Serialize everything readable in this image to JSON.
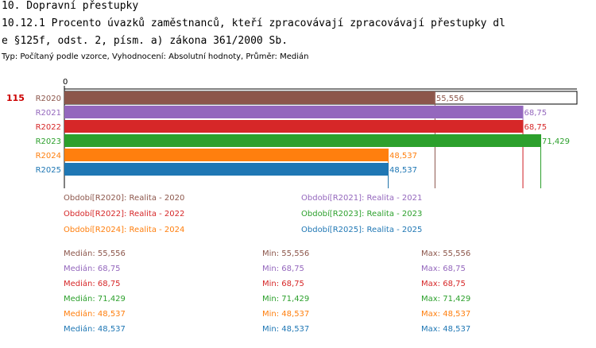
{
  "header": {
    "section": "10. Dopravní přestupky",
    "title_line1": "10.12.1 Procento úvazků zaměstnanců, kteří zpracovávají zpracovávají přestupky dl",
    "title_line2": "e §125f, odst. 2, písm. a) zákona 361/2000 Sb.",
    "subtitle": "Typ: Počítaný podle vzorce, Vyhodnocení: Absolutní hodnoty, Průměr: Medián"
  },
  "chart_data": {
    "type": "bar",
    "orientation": "horizontal",
    "row_label": "115",
    "axis_zero_label": "0",
    "categories": [
      "R2020",
      "R2021",
      "R2022",
      "R2023",
      "R2024",
      "R2025"
    ],
    "values": [
      55.556,
      68.75,
      68.75,
      71.429,
      48.537,
      48.537
    ],
    "value_labels": [
      "55,556",
      "68,75",
      "68,75",
      "71,429",
      "48,537",
      "48,537"
    ],
    "colors": [
      "#8c564b",
      "#9467bd",
      "#d62728",
      "#2ca02c",
      "#ff7f0e",
      "#1f77b4"
    ],
    "xlim": [
      0,
      71.429
    ]
  },
  "legend": [
    "Období[R2020]: Realita - 2020",
    "Období[R2021]: Realita - 2021",
    "Období[R2022]: Realita - 2022",
    "Období[R2023]: Realita - 2023",
    "Období[R2024]: Realita - 2024",
    "Období[R2025]: Realita - 2025"
  ],
  "stats": [
    {
      "median": "Medián: 55,556",
      "min": "Min: 55,556",
      "max": "Max: 55,556"
    },
    {
      "median": "Medián: 68,75",
      "min": "Min: 68,75",
      "max": "Max: 68,75"
    },
    {
      "median": "Medián: 68,75",
      "min": "Min: 68,75",
      "max": "Max: 68,75"
    },
    {
      "median": "Medián: 71,429",
      "min": "Min: 71,429",
      "max": "Max: 71,429"
    },
    {
      "median": "Medián: 48,537",
      "min": "Min: 48,537",
      "max": "Max: 48,537"
    },
    {
      "median": "Medián: 48,537",
      "min": "Min: 48,537",
      "max": "Max: 48,537"
    }
  ]
}
